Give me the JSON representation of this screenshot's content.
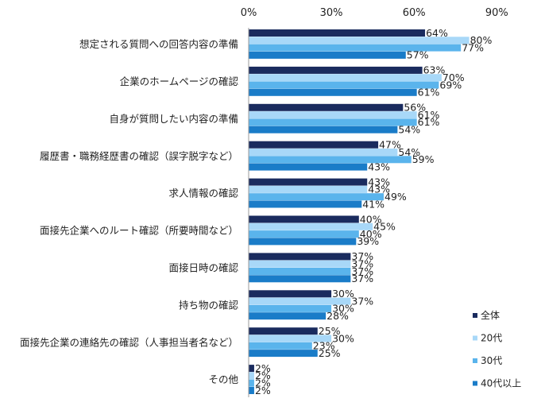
{
  "chart_data": {
    "type": "bar",
    "orientation": "horizontal",
    "title": "",
    "xlabel": "",
    "ylabel": "",
    "xlim": [
      0,
      90
    ],
    "x_ticks": [
      "0%",
      "30%",
      "60%",
      "90%"
    ],
    "x_tick_values": [
      0,
      30,
      60,
      90
    ],
    "axis_position": "top",
    "grid": false,
    "legend_position": "right-bottom",
    "categories": [
      "想定される質問への回答内容の準備",
      "企業のホームページの確認",
      "自身が質問したい内容の準備",
      "履歴書・職務経歴書の確認（誤字脱字など）",
      "求人情報の確認",
      "面接先企業へのルート確認（所要時間など）",
      "面接日時の確認",
      "持ち物の確認",
      "面接先企業の連絡先の確認（人事担当者名など）",
      "その他"
    ],
    "series": [
      {
        "name": "全体",
        "color": "#1a2b5e",
        "values": [
          64,
          63,
          56,
          47,
          43,
          40,
          37,
          30,
          25,
          2
        ],
        "labels": [
          "64%",
          "63%",
          "56%",
          "47%",
          "43%",
          "40%",
          "37%",
          "30%",
          "25%",
          "2%"
        ]
      },
      {
        "name": "20代",
        "color": "#a8d8f8",
        "values": [
          80,
          70,
          61,
          54,
          43,
          45,
          37,
          37,
          30,
          2
        ],
        "labels": [
          "80%",
          "70%",
          "61%",
          "54%",
          "43%",
          "45%",
          "37%",
          "37%",
          "30%",
          "2%"
        ]
      },
      {
        "name": "30代",
        "color": "#5ab4ec",
        "values": [
          77,
          69,
          61,
          59,
          49,
          40,
          37,
          30,
          23,
          2
        ],
        "labels": [
          "77%",
          "69%",
          "61%",
          "59%",
          "49%",
          "40%",
          "37%",
          "30%",
          "23%",
          "2%"
        ]
      },
      {
        "name": "40代以上",
        "color": "#1a7cc8",
        "values": [
          57,
          61,
          54,
          43,
          41,
          39,
          37,
          28,
          25,
          2
        ],
        "labels": [
          "57%",
          "61%",
          "54%",
          "43%",
          "41%",
          "39%",
          "37%",
          "28%",
          "25%",
          "2%"
        ]
      }
    ]
  }
}
